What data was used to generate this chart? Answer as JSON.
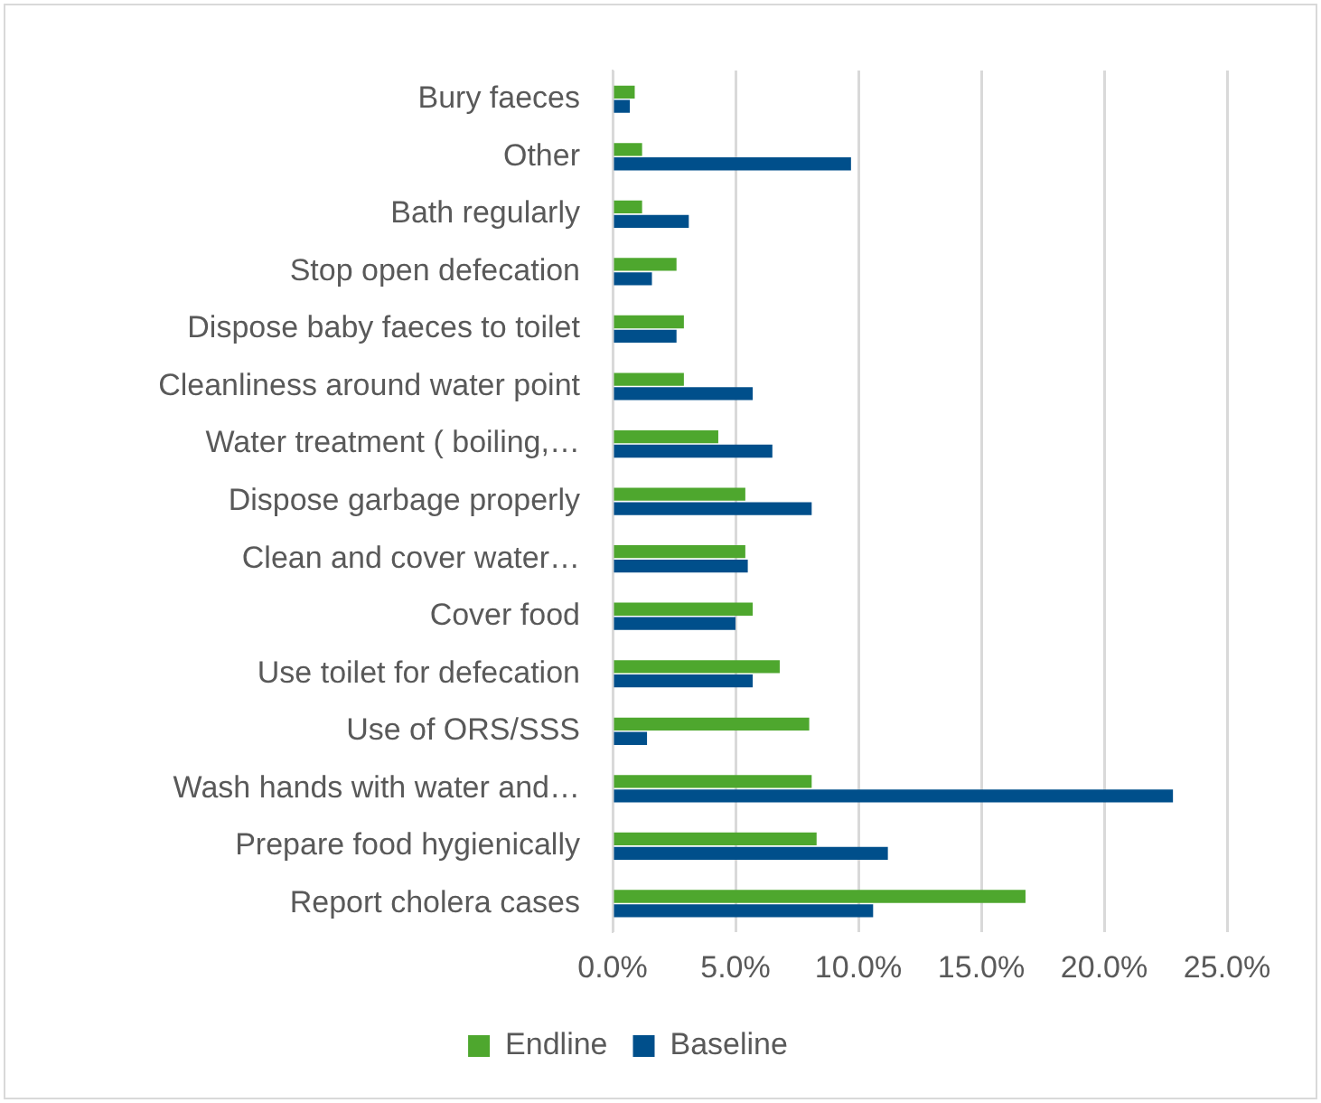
{
  "chart_data": {
    "type": "bar",
    "orientation": "horizontal",
    "categories": [
      "Bury faeces",
      "Other",
      "Bath regularly",
      "Stop open defecation",
      "Dispose baby faeces to toilet",
      "Cleanliness around water point",
      "Water treatment ( boiling,…",
      "Dispose garbage properly",
      "Clean and cover water…",
      "Cover food",
      "Use toilet for defecation",
      "Use of ORS/SSS",
      "Wash hands with water and…",
      "Prepare food hygienically",
      "Report cholera cases"
    ],
    "series": [
      {
        "name": "Endline",
        "color": "#4ea72e",
        "values": [
          0.9,
          1.2,
          1.2,
          2.6,
          2.9,
          2.9,
          4.3,
          5.4,
          5.4,
          5.7,
          6.8,
          8.0,
          8.1,
          8.3,
          16.8
        ]
      },
      {
        "name": "Baseline",
        "color": "#004f8b",
        "values": [
          0.7,
          9.7,
          3.1,
          1.6,
          2.6,
          5.7,
          6.5,
          8.1,
          5.5,
          5.0,
          5.7,
          1.4,
          22.8,
          11.2,
          10.6
        ]
      }
    ],
    "xlim": [
      0,
      25
    ],
    "xticks": [
      {
        "value": 0,
        "label": "0.0%"
      },
      {
        "value": 5,
        "label": "5.0%"
      },
      {
        "value": 10,
        "label": "10.0%"
      },
      {
        "value": 15,
        "label": "15.0%"
      },
      {
        "value": 20,
        "label": "20.0%"
      },
      {
        "value": 25,
        "label": "25.0%"
      }
    ],
    "grid": "x",
    "legend": "bottom"
  }
}
